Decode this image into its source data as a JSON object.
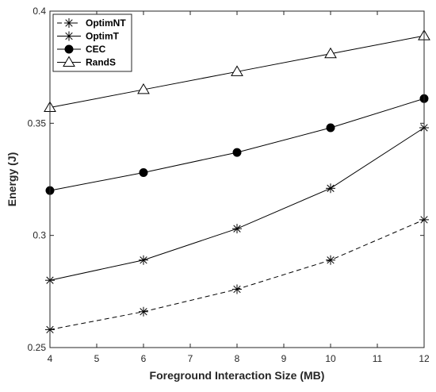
{
  "chart_data": {
    "type": "line",
    "xlabel": "Foreground Interaction Size (MB)",
    "ylabel": "Energy (J)",
    "xlim": [
      4,
      12
    ],
    "ylim": [
      0.25,
      0.4
    ],
    "xticks": [
      4,
      5,
      6,
      7,
      8,
      9,
      10,
      11,
      12
    ],
    "xtick_labels": [
      "4",
      "5",
      "6",
      "7",
      "8",
      "9",
      "10",
      "11",
      "12"
    ],
    "yticks": [
      0.25,
      0.3,
      0.35,
      0.4
    ],
    "ytick_labels": [
      "0.25",
      "0.3",
      "0.35",
      "0.4"
    ],
    "grid": false,
    "legend_position": "top-left",
    "x": [
      4,
      6,
      8,
      10,
      12
    ],
    "series": [
      {
        "name": "OptimNT",
        "values": [
          0.258,
          0.266,
          0.276,
          0.289,
          0.307
        ],
        "line_style": "dashed",
        "marker": "asterisk",
        "color": "#000000"
      },
      {
        "name": "OptimT",
        "values": [
          0.28,
          0.289,
          0.303,
          0.321,
          0.348
        ],
        "line_style": "solid",
        "marker": "asterisk",
        "color": "#000000"
      },
      {
        "name": "CEC",
        "values": [
          0.32,
          0.328,
          0.337,
          0.348,
          0.361
        ],
        "line_style": "solid",
        "marker": "filled-circle",
        "color": "#000000"
      },
      {
        "name": "RandS",
        "values": [
          0.357,
          0.365,
          0.373,
          0.381,
          0.389
        ],
        "line_style": "solid",
        "marker": "open-triangle",
        "color": "#000000"
      }
    ]
  }
}
